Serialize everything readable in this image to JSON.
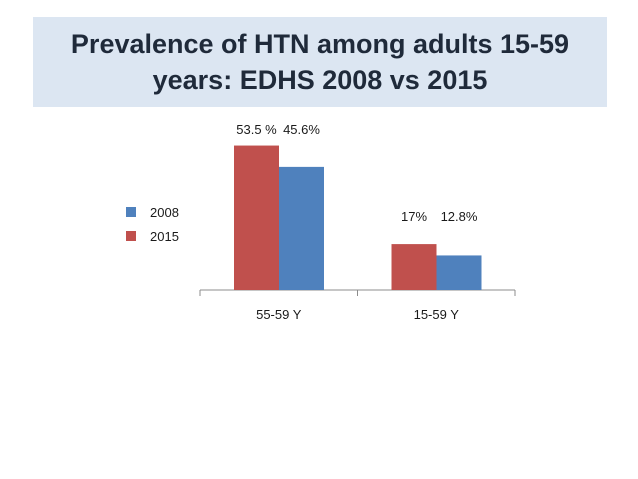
{
  "title": {
    "line1": "Prevalence of HTN among adults 15-59",
    "line2": "years: EDHS 2008 vs 2015"
  },
  "chart_data": {
    "type": "bar",
    "categories": [
      "55-59 Y",
      "15-59 Y"
    ],
    "series": [
      {
        "name": "2015",
        "values": [
          53.5,
          17
        ],
        "color": "#c0504d",
        "labels": [
          "53.5 %",
          "17%"
        ]
      },
      {
        "name": "2008",
        "values": [
          45.6,
          12.8
        ],
        "color": "#4f81bd",
        "labels": [
          "45.6%",
          "12.8%"
        ]
      }
    ],
    "legend": [
      {
        "name": "2008",
        "color": "#4f81bd"
      },
      {
        "name": "2015",
        "color": "#c0504d"
      }
    ],
    "legend_position": "left",
    "ylim": [
      0,
      60
    ],
    "grid": false
  }
}
